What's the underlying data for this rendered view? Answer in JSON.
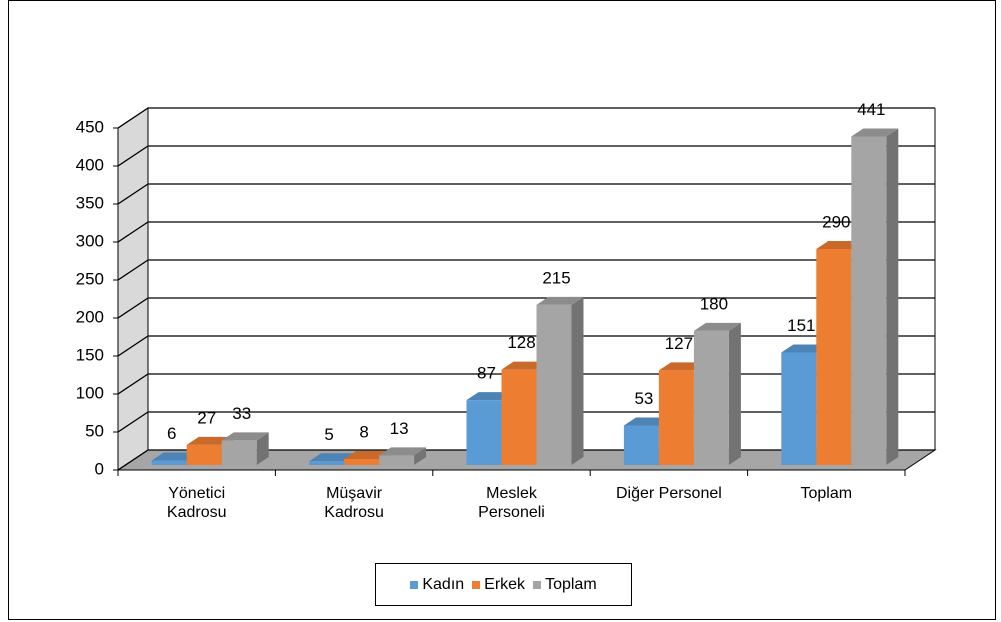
{
  "chart_data": {
    "type": "bar3d",
    "categories": [
      "Yönetici Kadrosu",
      "Müşavir Kadrosu",
      "Meslek Personeli",
      "Diğer Personel",
      "Toplam"
    ],
    "series": [
      {
        "name": "Kadın",
        "color": "#5b9bd5",
        "values": [
          6,
          5,
          87,
          53,
          151
        ]
      },
      {
        "name": "Erkek",
        "color": "#ed7d31",
        "values": [
          27,
          8,
          128,
          127,
          290
        ]
      },
      {
        "name": "Toplam",
        "color": "#a5a5a5",
        "values": [
          33,
          13,
          215,
          180,
          441
        ]
      }
    ],
    "ylim": [
      0,
      450
    ],
    "yticks": [
      0,
      50,
      100,
      150,
      200,
      250,
      300,
      350,
      400,
      450
    ],
    "grid": true,
    "legend": "bottom"
  }
}
